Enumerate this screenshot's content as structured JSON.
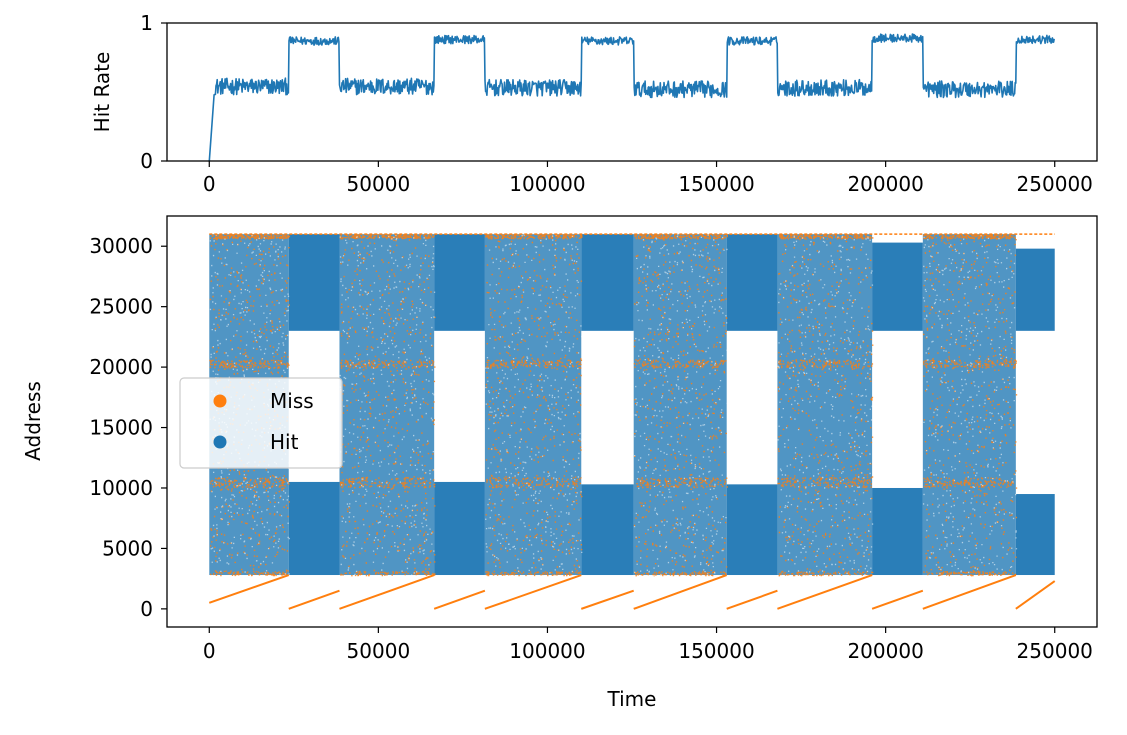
{
  "chart_data": [
    {
      "type": "line",
      "ylabel": "Hit Rate",
      "xlim": [
        -12500,
        262500
      ],
      "ylim": [
        0,
        1.0
      ],
      "xticks": [
        0,
        50000,
        100000,
        150000,
        200000,
        250000
      ],
      "yticks": [
        0,
        1
      ],
      "color": "#1f77b4",
      "segments": [
        {
          "x_start": 0,
          "x_end": 1000,
          "level": 0.45
        },
        {
          "x_start": 1000,
          "x_end": 23500,
          "level": 0.54
        },
        {
          "x_start": 23500,
          "x_end": 38500,
          "level": 0.87
        },
        {
          "x_start": 38500,
          "x_end": 66500,
          "level": 0.54
        },
        {
          "x_start": 66500,
          "x_end": 81500,
          "level": 0.88
        },
        {
          "x_start": 81500,
          "x_end": 110000,
          "level": 0.53
        },
        {
          "x_start": 110000,
          "x_end": 125500,
          "level": 0.87
        },
        {
          "x_start": 125500,
          "x_end": 153000,
          "level": 0.52
        },
        {
          "x_start": 153000,
          "x_end": 168000,
          "level": 0.87
        },
        {
          "x_start": 168000,
          "x_end": 196000,
          "level": 0.53
        },
        {
          "x_start": 196000,
          "x_end": 211000,
          "level": 0.89
        },
        {
          "x_start": 211000,
          "x_end": 238500,
          "level": 0.52
        },
        {
          "x_start": 238500,
          "x_end": 250000,
          "level": 0.88
        }
      ]
    },
    {
      "type": "scatter",
      "xlabel": "Time",
      "ylabel": "Address",
      "xlim": [
        -12500,
        262500
      ],
      "ylim": [
        -1500,
        32500
      ],
      "xticks": [
        0,
        50000,
        100000,
        150000,
        200000,
        250000
      ],
      "yticks": [
        0,
        5000,
        10000,
        15000,
        20000,
        25000,
        30000
      ],
      "legend": {
        "position": "center-left",
        "entries": [
          {
            "label": "Miss",
            "color": "#ff7f0e"
          },
          {
            "label": "Hit",
            "color": "#1f77b4"
          }
        ]
      },
      "series": [
        {
          "name": "Miss",
          "color": "#ff7f0e"
        },
        {
          "name": "Hit",
          "color": "#1f77b4"
        }
      ],
      "wide_phases": [
        {
          "x_start": 0,
          "x_end": 23500,
          "y_min": 2800,
          "y_max": 31000
        },
        {
          "x_start": 38500,
          "x_end": 66500,
          "y_min": 2800,
          "y_max": 31000
        },
        {
          "x_start": 81500,
          "x_end": 110000,
          "y_min": 2800,
          "y_max": 31000
        },
        {
          "x_start": 125500,
          "x_end": 153000,
          "y_min": 2800,
          "y_max": 31000
        },
        {
          "x_start": 168000,
          "x_end": 196000,
          "y_min": 2800,
          "y_max": 31000
        },
        {
          "x_start": 211000,
          "x_end": 238500,
          "y_min": 2800,
          "y_max": 31000
        }
      ],
      "narrow_phases": [
        {
          "x_start": 23500,
          "x_end": 38500,
          "bands": [
            [
              23000,
              31000
            ],
            [
              2800,
              10500
            ]
          ]
        },
        {
          "x_start": 66500,
          "x_end": 81500,
          "bands": [
            [
              23000,
              31000
            ],
            [
              2800,
              10500
            ]
          ]
        },
        {
          "x_start": 110000,
          "x_end": 125500,
          "bands": [
            [
              23000,
              31000
            ],
            [
              2800,
              10300
            ]
          ]
        },
        {
          "x_start": 153000,
          "x_end": 168000,
          "bands": [
            [
              23000,
              31000
            ],
            [
              2800,
              10300
            ]
          ]
        },
        {
          "x_start": 196000,
          "x_end": 211000,
          "bands": [
            [
              23000,
              30300
            ],
            [
              2800,
              10000
            ]
          ]
        },
        {
          "x_start": 238500,
          "x_end": 250000,
          "bands": [
            [
              23000,
              29800
            ],
            [
              2800,
              9500
            ]
          ]
        }
      ],
      "miss_ramps": [
        {
          "x0": 0,
          "y0": 500,
          "x1": 23500,
          "y1": 2800
        },
        {
          "x0": 23500,
          "y0": 0,
          "x1": 38500,
          "y1": 1500
        },
        {
          "x0": 38500,
          "y0": 0,
          "x1": 66500,
          "y1": 2800
        },
        {
          "x0": 66500,
          "y0": 0,
          "x1": 81500,
          "y1": 1500
        },
        {
          "x0": 81500,
          "y0": 0,
          "x1": 110000,
          "y1": 2800
        },
        {
          "x0": 110000,
          "y0": 0,
          "x1": 125500,
          "y1": 1500
        },
        {
          "x0": 125500,
          "y0": 0,
          "x1": 153000,
          "y1": 2800
        },
        {
          "x0": 153000,
          "y0": 0,
          "x1": 168000,
          "y1": 1500
        },
        {
          "x0": 168000,
          "y0": 0,
          "x1": 196000,
          "y1": 2800
        },
        {
          "x0": 196000,
          "y0": 0,
          "x1": 211000,
          "y1": 1500
        },
        {
          "x0": 211000,
          "y0": 0,
          "x1": 238500,
          "y1": 2800
        },
        {
          "x0": 238500,
          "y0": 0,
          "x1": 250000,
          "y1": 2300
        }
      ],
      "miss_top_line": {
        "x0": 0,
        "x1": 250000,
        "y": 31000
      }
    }
  ]
}
